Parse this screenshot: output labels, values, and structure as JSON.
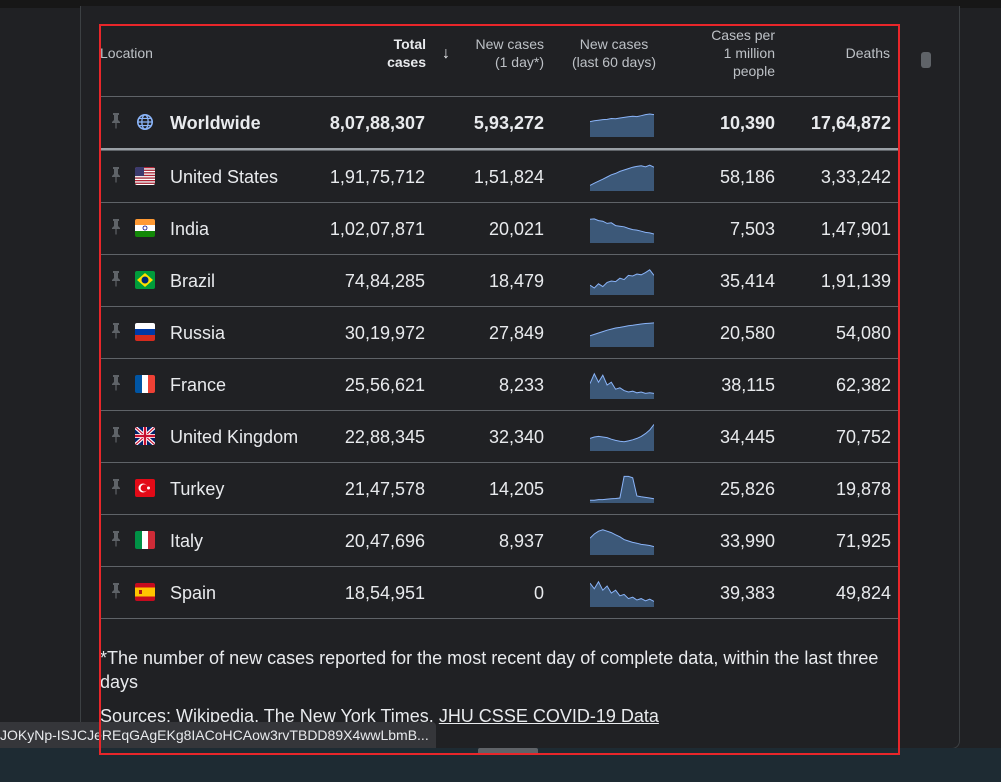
{
  "header": {
    "location": "Location",
    "total_line1": "Total",
    "total_line2": "cases",
    "sort_arrow": "↓",
    "new1_line1": "New cases",
    "new1_line2": "(1 day*)",
    "new60_line1": "New cases",
    "new60_line2": "(last 60 days)",
    "permil_line1": "Cases per",
    "permil_line2": "1 million",
    "permil_line3": "people",
    "deaths": "Deaths"
  },
  "rows": [
    {
      "name": "Worldwide",
      "icon": "globe-icon",
      "total": "8,07,88,307",
      "new": "5,93,272",
      "permil": "10,390",
      "deaths": "17,64,872",
      "trend": [
        0.55,
        0.58,
        0.6,
        0.62,
        0.63,
        0.66,
        0.65,
        0.68,
        0.7,
        0.72,
        0.74,
        0.73,
        0.76,
        0.8,
        0.82,
        0.8
      ]
    },
    {
      "name": "United States",
      "icon": "us-flag-icon",
      "total": "1,91,75,712",
      "new": "1,51,824",
      "permil": "58,186",
      "deaths": "3,33,242",
      "trend": [
        0.2,
        0.28,
        0.35,
        0.42,
        0.5,
        0.58,
        0.63,
        0.7,
        0.75,
        0.8,
        0.85,
        0.88,
        0.9,
        0.86,
        0.92,
        0.85
      ]
    },
    {
      "name": "India",
      "icon": "india-flag-icon",
      "total": "1,02,07,871",
      "new": "20,021",
      "permil": "7,503",
      "deaths": "1,47,901",
      "trend": [
        0.85,
        0.86,
        0.8,
        0.78,
        0.7,
        0.72,
        0.62,
        0.6,
        0.58,
        0.52,
        0.48,
        0.46,
        0.42,
        0.38,
        0.36,
        0.32
      ]
    },
    {
      "name": "Brazil",
      "icon": "brazil-flag-icon",
      "total": "74,84,285",
      "new": "18,479",
      "permil": "35,414",
      "deaths": "1,91,139",
      "trend": [
        0.35,
        0.25,
        0.4,
        0.3,
        0.45,
        0.5,
        0.48,
        0.6,
        0.55,
        0.7,
        0.68,
        0.75,
        0.72,
        0.8,
        0.9,
        0.7
      ]
    },
    {
      "name": "Russia",
      "icon": "russia-flag-icon",
      "total": "30,19,972",
      "new": "27,849",
      "permil": "20,580",
      "deaths": "54,080",
      "trend": [
        0.4,
        0.45,
        0.5,
        0.55,
        0.6,
        0.64,
        0.68,
        0.7,
        0.73,
        0.76,
        0.78,
        0.8,
        0.82,
        0.84,
        0.85,
        0.86
      ]
    },
    {
      "name": "France",
      "icon": "france-flag-icon",
      "total": "25,56,621",
      "new": "8,233",
      "permil": "38,115",
      "deaths": "62,382",
      "trend": [
        0.55,
        0.9,
        0.6,
        0.85,
        0.5,
        0.6,
        0.35,
        0.4,
        0.3,
        0.25,
        0.28,
        0.22,
        0.25,
        0.2,
        0.22,
        0.2
      ]
    },
    {
      "name": "United Kingdom",
      "icon": "uk-flag-icon",
      "total": "22,88,345",
      "new": "32,340",
      "permil": "34,445",
      "deaths": "70,752",
      "trend": [
        0.45,
        0.5,
        0.52,
        0.5,
        0.48,
        0.42,
        0.38,
        0.35,
        0.33,
        0.36,
        0.4,
        0.45,
        0.52,
        0.62,
        0.75,
        0.95
      ]
    },
    {
      "name": "Turkey",
      "icon": "turkey-flag-icon",
      "total": "21,47,578",
      "new": "14,205",
      "permil": "25,826",
      "deaths": "19,878",
      "trend": [
        0.1,
        0.1,
        0.12,
        0.12,
        0.14,
        0.15,
        0.16,
        0.18,
        0.95,
        0.95,
        0.9,
        0.25,
        0.22,
        0.2,
        0.18,
        0.15
      ]
    },
    {
      "name": "Italy",
      "icon": "italy-flag-icon",
      "total": "20,47,696",
      "new": "8,937",
      "permil": "33,990",
      "deaths": "71,925",
      "trend": [
        0.6,
        0.75,
        0.85,
        0.9,
        0.85,
        0.8,
        0.72,
        0.65,
        0.55,
        0.5,
        0.45,
        0.42,
        0.38,
        0.36,
        0.34,
        0.3
      ]
    },
    {
      "name": "Spain",
      "icon": "spain-flag-icon",
      "total": "18,54,951",
      "new": "0",
      "permil": "39,383",
      "deaths": "49,824",
      "trend": [
        0.85,
        0.65,
        0.9,
        0.6,
        0.75,
        0.5,
        0.6,
        0.4,
        0.45,
        0.3,
        0.35,
        0.25,
        0.3,
        0.22,
        0.28,
        0.2
      ]
    }
  ],
  "footnote": "*The number of new cases reported for the most recent day of complete data, within the last three days",
  "sources_prefix": "Sources: Wikipedia, The New York Times, ",
  "sources_link": "JHU CSSE COVID-19 Data",
  "status_url": "JOKyNp-ISJCJeREqGAgEKg8IACoHCAow3rvTBDD89X4wwLbmB...",
  "colors": {
    "background": "#202124",
    "text": "#e8eaed",
    "spark_fill": "#3c5878",
    "spark_line": "#8ab4f8",
    "highlight": "#e8262a"
  }
}
